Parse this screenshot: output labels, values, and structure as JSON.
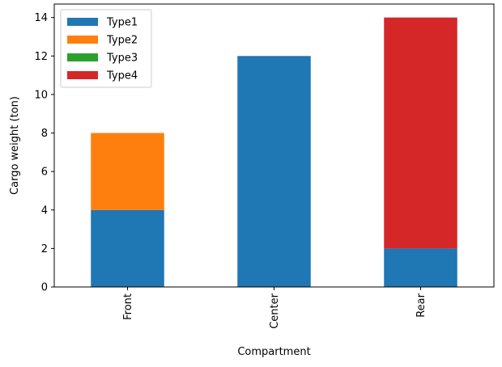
{
  "chart_data": {
    "type": "bar",
    "stacked": true,
    "title": "",
    "xlabel": "Compartment",
    "ylabel": "Cargo weight (ton)",
    "categories": [
      "Front",
      "Center",
      "Rear"
    ],
    "series": [
      {
        "name": "Type1",
        "color": "#1f77b4",
        "values": [
          4,
          12,
          2
        ]
      },
      {
        "name": "Type2",
        "color": "#ff7f0e",
        "values": [
          4,
          0,
          0
        ]
      },
      {
        "name": "Type3",
        "color": "#2ca02c",
        "values": [
          0,
          0,
          0
        ]
      },
      {
        "name": "Type4",
        "color": "#d62728",
        "values": [
          0,
          0,
          12
        ]
      }
    ],
    "ylim": [
      0,
      14.7
    ],
    "yticks": [
      0,
      2,
      4,
      6,
      8,
      10,
      12,
      14
    ],
    "grid": false,
    "legend_position": "top-left",
    "xtick_rotation": "vertical"
  }
}
